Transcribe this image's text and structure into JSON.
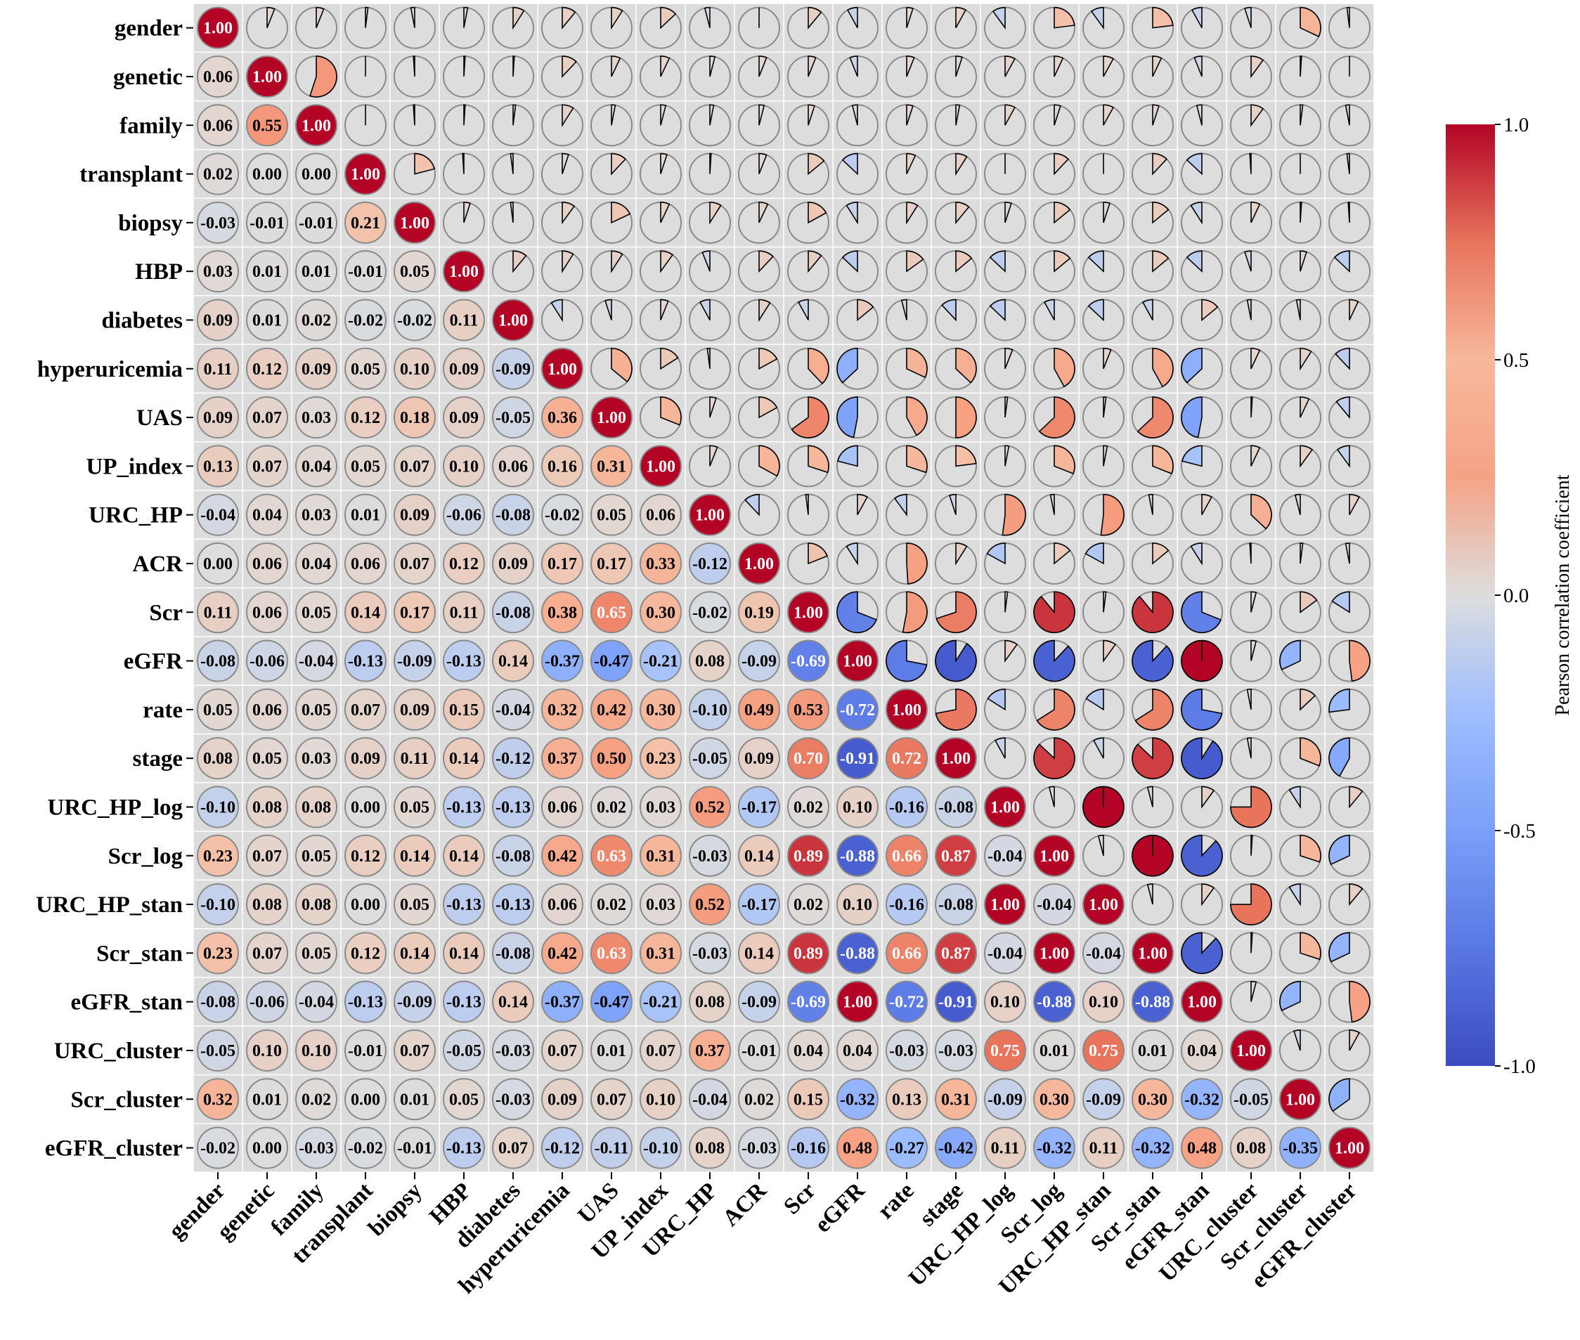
{
  "chart_data": {
    "type": "heatmap",
    "subtype": "correlation-matrix-lower-numbers-upper-pies",
    "variables": [
      "gender",
      "genetic",
      "family",
      "transplant",
      "biopsy",
      "HBP",
      "diabetes",
      "hyperuricemia",
      "UAS",
      "UP_index",
      "URC_HP",
      "ACR",
      "Scr",
      "eGFR",
      "rate",
      "stage",
      "URC_HP_log",
      "Scr_log",
      "URC_HP_stan",
      "Scr_stan",
      "eGFR_stan",
      "URC_cluster",
      "Scr_cluster",
      "eGFR_cluster"
    ],
    "matrix": [
      [
        1.0,
        0.06,
        0.06,
        0.02,
        -0.03,
        0.03,
        0.09,
        0.11,
        0.09,
        0.13,
        -0.04,
        0.0,
        0.11,
        -0.08,
        0.05,
        0.08,
        -0.1,
        0.23,
        -0.1,
        0.23,
        -0.08,
        -0.05,
        0.32,
        -0.02
      ],
      [
        0.06,
        1.0,
        0.55,
        -0.0,
        -0.01,
        0.01,
        0.01,
        0.12,
        0.07,
        0.07,
        0.04,
        0.06,
        0.06,
        -0.06,
        0.06,
        0.05,
        0.08,
        0.07,
        0.08,
        0.07,
        -0.06,
        0.1,
        0.01,
        -0.0
      ],
      [
        0.06,
        0.55,
        1.0,
        -0.0,
        -0.01,
        0.01,
        0.02,
        0.09,
        0.03,
        0.04,
        0.03,
        0.04,
        0.05,
        -0.04,
        0.05,
        0.03,
        0.08,
        0.05,
        0.08,
        0.05,
        -0.04,
        0.1,
        0.02,
        -0.03
      ],
      [
        0.02,
        -0.0,
        -0.0,
        1.0,
        0.21,
        -0.01,
        -0.02,
        0.05,
        0.12,
        0.05,
        0.01,
        0.06,
        0.14,
        -0.13,
        0.07,
        0.09,
        0.0,
        0.12,
        0.0,
        0.12,
        -0.13,
        -0.01,
        -0.0,
        -0.02
      ],
      [
        -0.03,
        -0.01,
        -0.01,
        0.21,
        1.0,
        0.05,
        -0.02,
        0.1,
        0.18,
        0.07,
        0.09,
        0.07,
        0.17,
        -0.09,
        0.09,
        0.11,
        0.05,
        0.14,
        0.05,
        0.14,
        -0.09,
        0.07,
        0.01,
        -0.01
      ],
      [
        0.03,
        0.01,
        0.01,
        -0.01,
        0.05,
        1.0,
        0.11,
        0.09,
        0.09,
        0.1,
        -0.06,
        0.12,
        0.11,
        -0.13,
        0.15,
        0.14,
        -0.13,
        0.14,
        -0.13,
        0.14,
        -0.13,
        -0.05,
        0.05,
        -0.13
      ],
      [
        0.09,
        0.01,
        0.02,
        -0.02,
        -0.02,
        0.11,
        1.0,
        -0.09,
        -0.05,
        0.06,
        -0.08,
        0.09,
        -0.08,
        0.14,
        -0.04,
        -0.12,
        -0.13,
        -0.08,
        -0.13,
        -0.08,
        0.14,
        -0.03,
        -0.03,
        0.07
      ],
      [
        0.11,
        0.12,
        0.09,
        0.05,
        0.1,
        0.09,
        -0.09,
        1.0,
        0.36,
        0.16,
        -0.02,
        0.17,
        0.38,
        -0.37,
        0.32,
        0.37,
        0.06,
        0.42,
        0.06,
        0.42,
        -0.37,
        0.07,
        0.09,
        -0.12
      ],
      [
        0.09,
        0.07,
        0.03,
        0.12,
        0.18,
        0.09,
        -0.05,
        0.36,
        1.0,
        0.31,
        0.05,
        0.17,
        0.65,
        -0.47,
        0.42,
        0.5,
        0.02,
        0.63,
        0.02,
        0.63,
        -0.47,
        0.01,
        0.07,
        -0.11
      ],
      [
        0.13,
        0.07,
        0.04,
        0.05,
        0.07,
        0.1,
        0.06,
        0.16,
        0.31,
        1.0,
        0.06,
        0.33,
        0.3,
        -0.21,
        0.3,
        0.23,
        0.03,
        0.31,
        0.03,
        0.31,
        -0.21,
        0.07,
        0.1,
        -0.1
      ],
      [
        -0.04,
        0.04,
        0.03,
        0.01,
        0.09,
        -0.06,
        -0.08,
        -0.02,
        0.05,
        0.06,
        1.0,
        -0.12,
        -0.02,
        0.08,
        -0.1,
        -0.05,
        0.52,
        -0.03,
        0.52,
        -0.03,
        0.08,
        0.37,
        -0.04,
        0.08
      ],
      [
        0.0,
        0.06,
        0.04,
        0.06,
        0.07,
        0.12,
        0.09,
        0.17,
        0.17,
        0.33,
        -0.12,
        1.0,
        0.19,
        -0.09,
        0.49,
        0.09,
        -0.17,
        0.14,
        -0.17,
        0.14,
        -0.09,
        -0.01,
        0.02,
        -0.03
      ],
      [
        0.11,
        0.06,
        0.05,
        0.14,
        0.17,
        0.11,
        -0.08,
        0.38,
        0.65,
        0.3,
        -0.02,
        0.19,
        1.0,
        -0.69,
        0.53,
        0.7,
        0.02,
        0.89,
        0.02,
        0.89,
        -0.69,
        0.04,
        0.15,
        -0.16
      ],
      [
        -0.08,
        -0.06,
        -0.04,
        -0.13,
        -0.09,
        -0.13,
        0.14,
        -0.37,
        -0.47,
        -0.21,
        0.08,
        -0.09,
        -0.69,
        1.0,
        -0.72,
        -0.91,
        0.1,
        -0.88,
        0.1,
        -0.88,
        1.0,
        0.04,
        -0.32,
        0.48
      ],
      [
        0.05,
        0.06,
        0.05,
        0.07,
        0.09,
        0.15,
        -0.04,
        0.32,
        0.42,
        0.3,
        -0.1,
        0.49,
        0.53,
        -0.72,
        1.0,
        0.72,
        -0.16,
        0.66,
        -0.16,
        0.66,
        -0.72,
        -0.03,
        0.13,
        -0.27
      ],
      [
        0.08,
        0.05,
        0.03,
        0.09,
        0.11,
        0.14,
        -0.12,
        0.37,
        0.5,
        0.23,
        -0.05,
        0.09,
        0.7,
        -0.91,
        0.72,
        1.0,
        -0.08,
        0.87,
        -0.08,
        0.87,
        -0.91,
        -0.03,
        0.31,
        -0.42
      ],
      [
        -0.1,
        0.08,
        0.08,
        0.0,
        0.05,
        -0.13,
        -0.13,
        0.06,
        0.02,
        0.03,
        0.52,
        -0.17,
        0.02,
        0.1,
        -0.16,
        -0.08,
        1.0,
        -0.04,
        1.0,
        -0.04,
        0.1,
        0.75,
        -0.09,
        0.11
      ],
      [
        0.23,
        0.07,
        0.05,
        0.12,
        0.14,
        0.14,
        -0.08,
        0.42,
        0.63,
        0.31,
        -0.03,
        0.14,
        0.89,
        -0.88,
        0.66,
        0.87,
        -0.04,
        1.0,
        -0.04,
        1.0,
        -0.88,
        0.01,
        0.3,
        -0.32
      ],
      [
        -0.1,
        0.08,
        0.08,
        0.0,
        0.05,
        -0.13,
        -0.13,
        0.06,
        0.02,
        0.03,
        0.52,
        -0.17,
        0.02,
        0.1,
        -0.16,
        -0.08,
        1.0,
        -0.04,
        1.0,
        -0.04,
        0.1,
        0.75,
        -0.09,
        0.11
      ],
      [
        0.23,
        0.07,
        0.05,
        0.12,
        0.14,
        0.14,
        -0.08,
        0.42,
        0.63,
        0.31,
        -0.03,
        0.14,
        0.89,
        -0.88,
        0.66,
        0.87,
        -0.04,
        1.0,
        -0.04,
        1.0,
        -0.88,
        0.01,
        0.3,
        -0.32
      ],
      [
        -0.08,
        -0.06,
        -0.04,
        -0.13,
        -0.09,
        -0.13,
        0.14,
        -0.37,
        -0.47,
        -0.21,
        0.08,
        -0.09,
        -0.69,
        1.0,
        -0.72,
        -0.91,
        0.1,
        -0.88,
        0.1,
        -0.88,
        1.0,
        0.04,
        -0.32,
        0.48
      ],
      [
        -0.05,
        0.1,
        0.1,
        -0.01,
        0.07,
        -0.05,
        -0.03,
        0.07,
        0.01,
        0.07,
        0.37,
        -0.01,
        0.04,
        0.04,
        -0.03,
        -0.03,
        0.75,
        0.01,
        0.75,
        0.01,
        0.04,
        1.0,
        -0.05,
        0.08
      ],
      [
        0.32,
        0.01,
        0.02,
        -0.0,
        0.01,
        0.05,
        -0.03,
        0.09,
        0.07,
        0.1,
        -0.04,
        0.02,
        0.15,
        -0.32,
        0.13,
        0.31,
        -0.09,
        0.3,
        -0.09,
        0.3,
        -0.32,
        -0.05,
        1.0,
        -0.35
      ],
      [
        -0.02,
        -0.0,
        -0.03,
        -0.02,
        -0.01,
        -0.13,
        0.07,
        -0.12,
        -0.11,
        -0.1,
        0.08,
        -0.03,
        -0.16,
        0.48,
        -0.27,
        -0.42,
        0.11,
        -0.32,
        0.11,
        -0.32,
        0.48,
        0.08,
        -0.35,
        1.0
      ]
    ],
    "value_range": [
      -1.0,
      1.0
    ],
    "colormap": "coolwarm",
    "colorbar": {
      "label": "Pearson correlation coefficient",
      "ticks": [
        1.0,
        0.5,
        0.0,
        -0.5,
        -1.0
      ],
      "tick_labels": [
        "1.0",
        "0.5",
        "0.0",
        "-0.5",
        "-1.0"
      ]
    },
    "lower_triangle": "circles with correlation values",
    "upper_triangle": "pie wedges proportional to |r|",
    "grid": true
  },
  "colors": {
    "grid_background": "#dcdcdc",
    "grid_lines": "#ffffff",
    "circle_stroke": "#8a8a8a",
    "cmap_low": "#3b4cc0",
    "cmap_mid": "#dddddd",
    "cmap_high": "#b40426"
  }
}
